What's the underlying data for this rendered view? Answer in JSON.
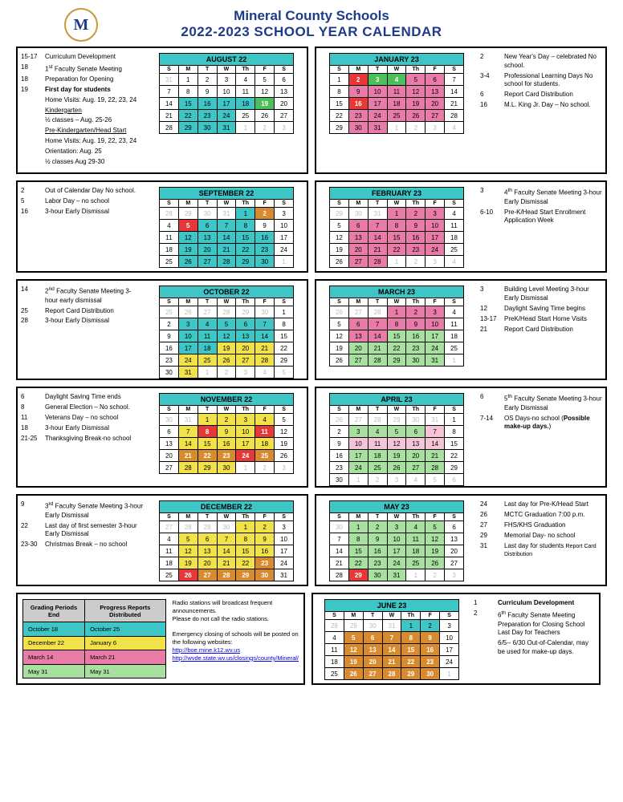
{
  "header": {
    "line1": "Mineral County Schools",
    "line2": "2022-2023 SCHOOL YEAR CALENDAR",
    "logo_letter": "M"
  },
  "colors": {
    "header_teal": "#3ec5c5",
    "teal": "#3ec5c5",
    "red": "#e63838",
    "green": "#4bbf5b",
    "orange": "#d88a2e",
    "yellow": "#f2e24a",
    "pink": "#e87ba8",
    "ltpink": "#f5c4d6",
    "ltgreen": "#a8e0a0",
    "gray_text": "#bbbbbb",
    "navy": "#1e3a8a"
  },
  "dow": [
    "S",
    "M",
    "T",
    "W",
    "Th",
    "F",
    "S"
  ],
  "months": [
    {
      "name": "AUGUST 22",
      "side": "left",
      "notes": [
        {
          "d": "15-17",
          "t": "Curriculum Development"
        },
        {
          "d": "18",
          "t": "1<sup>st</sup> Faculty Senate Meeting"
        },
        {
          "d": "18",
          "t": "Preparation for Opening"
        },
        {
          "d": "19",
          "t": "First day for students",
          "bold": true
        },
        {
          "d": "",
          "t": "Home Visits: Aug. 19, 22, 23, 24"
        },
        {
          "d": "",
          "t": "<u>Kindergarten</u>"
        },
        {
          "d": "",
          "t": "½ classes – Aug. 25-26"
        },
        {
          "d": "",
          "t": "<u>Pre-Kindergarten/Head Start</u>"
        },
        {
          "d": "",
          "t": "Home Visits: Aug. 19, 22, 23, 24"
        },
        {
          "d": "",
          "t": "Orientation: Aug. 25"
        },
        {
          "d": "",
          "t": "½ classes Aug 29-30"
        }
      ],
      "start": 1,
      "days": 31,
      "prev": 31,
      "hl": {
        "15": "teal",
        "16": "teal",
        "17": "teal",
        "18": "teal",
        "19": "green",
        "22": "teal",
        "23": "teal",
        "24": "teal",
        "29": "teal",
        "30": "teal",
        "31": "teal"
      }
    },
    {
      "name": "JANUARY 23",
      "side": "right",
      "notes": [
        {
          "d": "2",
          "t": "New Year's Day – celebrated No school."
        },
        {
          "d": "3-4",
          "t": "Professional Learning Days No school for students."
        },
        {
          "d": "6",
          "t": "Report Card Distribution"
        },
        {
          "d": "16",
          "t": "M.L. King Jr. Day – No school."
        }
      ],
      "start": 0,
      "days": 31,
      "prev": 31,
      "hl": {
        "2": "red",
        "3": "green",
        "4": "green",
        "5": "pink",
        "6": "pink",
        "9": "pink",
        "10": "pink",
        "11": "pink",
        "12": "pink",
        "13": "pink",
        "16": "red",
        "17": "pink",
        "18": "pink",
        "19": "pink",
        "20": "pink",
        "23": "pink",
        "24": "pink",
        "25": "pink",
        "26": "pink",
        "27": "pink",
        "30": "pink",
        "31": "pink"
      }
    },
    {
      "name": "SEPTEMBER 22",
      "side": "left",
      "notes": [
        {
          "d": "2",
          "t": "Out of Calendar Day No school."
        },
        {
          "d": "5",
          "t": "Labor Day – no school"
        },
        {
          "d": "16",
          "t": "3-hour Early Dismissal"
        }
      ],
      "start": 4,
      "days": 30,
      "prev": 31,
      "hl": {
        "1": "teal",
        "2": "orange",
        "5": "red",
        "6": "teal",
        "7": "teal",
        "8": "teal",
        "12": "teal",
        "13": "teal",
        "14": "teal",
        "15": "teal",
        "16": "teal",
        "19": "teal",
        "20": "teal",
        "21": "teal",
        "22": "teal",
        "23": "teal",
        "26": "teal",
        "27": "teal",
        "28": "teal",
        "29": "teal",
        "30": "teal"
      }
    },
    {
      "name": "FEBRUARY 23",
      "side": "right",
      "notes": [
        {
          "d": "3",
          "t": "4<sup>th</sup> Faculty Senate Meeting 3-hour Early Dismissal"
        },
        {
          "d": "6-10",
          "t": "Pre-K/Head Start Enrollment Application Week"
        }
      ],
      "start": 3,
      "days": 28,
      "prev": 31,
      "hl": {
        "1": "pink",
        "2": "pink",
        "3": "pink",
        "6": "pink",
        "7": "pink",
        "8": "pink",
        "9": "pink",
        "10": "pink",
        "13": "pink",
        "14": "pink",
        "15": "pink",
        "16": "pink",
        "17": "pink",
        "20": "pink",
        "21": "pink",
        "22": "pink",
        "23": "pink",
        "24": "pink",
        "27": "pink",
        "28": "pink"
      }
    },
    {
      "name": "OCTOBER 22",
      "side": "left",
      "notes": [
        {
          "d": "14",
          "t": "2<sup>nd</sup> Faculty Senate Meeting 3-hour early dismissal"
        },
        {
          "d": "25",
          "t": "Report Card Distribution"
        },
        {
          "d": "28",
          "t": "3-hour Early Dismissal"
        }
      ],
      "start": 6,
      "days": 31,
      "prev": 30,
      "hl": {
        "3": "teal",
        "4": "teal",
        "5": "teal",
        "6": "teal",
        "7": "teal",
        "10": "teal",
        "11": "teal",
        "12": "teal",
        "13": "teal",
        "14": "teal",
        "17": "teal",
        "18": "teal",
        "19": "yellow",
        "20": "yellow",
        "21": "yellow",
        "24": "yellow",
        "25": "yellow",
        "26": "yellow",
        "27": "yellow",
        "28": "yellow",
        "31": "yellow"
      }
    },
    {
      "name": "MARCH 23",
      "side": "right",
      "notes": [
        {
          "d": "3",
          "t": "Building Level Meeting 3-hour Early Dismissal"
        },
        {
          "d": "12",
          "t": "Daylight Saving Time begins"
        },
        {
          "d": "13-17",
          "t": "PreK/Head Start Home Visits"
        },
        {
          "d": "21",
          "t": "Report Card Distribution"
        }
      ],
      "start": 3,
      "days": 31,
      "prev": 28,
      "hl": {
        "1": "pink",
        "2": "pink",
        "3": "pink",
        "6": "pink",
        "7": "pink",
        "8": "pink",
        "9": "pink",
        "10": "pink",
        "13": "pink",
        "14": "pink",
        "15": "ltgreen",
        "16": "ltgreen",
        "17": "ltgreen",
        "20": "ltgreen",
        "21": "ltgreen",
        "22": "ltgreen",
        "23": "ltgreen",
        "24": "ltgreen",
        "27": "ltgreen",
        "28": "ltgreen",
        "29": "ltgreen",
        "30": "ltgreen",
        "31": "ltgreen"
      }
    },
    {
      "name": "NOVEMBER 22",
      "side": "left",
      "notes": [
        {
          "d": "6",
          "t": "Daylight Saving Time ends"
        },
        {
          "d": "8",
          "t": "General Election – No school."
        },
        {
          "d": "11",
          "t": "Veterans Day – no school"
        },
        {
          "d": "18",
          "t": "3-hour Early Dismissal"
        },
        {
          "d": "21-25",
          "t": "Thanksgiving Break-no school"
        }
      ],
      "start": 2,
      "days": 30,
      "prev": 31,
      "hl": {
        "1": "yellow",
        "2": "yellow",
        "3": "yellow",
        "4": "yellow",
        "7": "yellow",
        "8": "red",
        "9": "yellow",
        "10": "yellow",
        "11": "red",
        "14": "yellow",
        "15": "yellow",
        "16": "yellow",
        "17": "yellow",
        "18": "yellow",
        "21": "orange",
        "22": "orange",
        "23": "orange",
        "24": "red",
        "25": "orange",
        "28": "yellow",
        "29": "yellow",
        "30": "yellow"
      }
    },
    {
      "name": "APRIL 23",
      "side": "right",
      "notes": [
        {
          "d": "6",
          "t": "5<sup>th</sup> Faculty Senate Meeting 3-hour Early Dismissal"
        },
        {
          "d": "7-14",
          "t": "OS Days-no school (<b>Possible make-up days.</b>)"
        }
      ],
      "start": 6,
      "days": 30,
      "prev": 31,
      "hl": {
        "3": "ltgreen",
        "4": "ltgreen",
        "5": "ltgreen",
        "6": "ltgreen",
        "7": "ltpink",
        "10": "ltpink",
        "11": "ltpink",
        "12": "ltpink",
        "13": "ltpink",
        "14": "ltpink",
        "17": "ltgreen",
        "18": "ltgreen",
        "19": "ltgreen",
        "20": "ltgreen",
        "21": "ltgreen",
        "24": "ltgreen",
        "25": "ltgreen",
        "26": "ltgreen",
        "27": "ltgreen",
        "28": "ltgreen"
      }
    },
    {
      "name": "DECEMBER 22",
      "side": "left",
      "notes": [
        {
          "d": "9",
          "t": "3<sup>rd</sup> Faculty Senate Meeting 3-hour Early Dismissal"
        },
        {
          "d": "22",
          "t": "Last day of first semester 3-hour Early Dismissal"
        },
        {
          "d": "23-30",
          "t": "Christmas Break – no school"
        }
      ],
      "start": 4,
      "days": 31,
      "prev": 30,
      "hl": {
        "1": "yellow",
        "2": "yellow",
        "5": "yellow",
        "6": "yellow",
        "7": "yellow",
        "8": "yellow",
        "9": "yellow",
        "12": "yellow",
        "13": "yellow",
        "14": "yellow",
        "15": "yellow",
        "16": "yellow",
        "19": "yellow",
        "20": "yellow",
        "21": "yellow",
        "22": "yellow",
        "23": "orange",
        "26": "red",
        "27": "orange",
        "28": "orange",
        "29": "orange",
        "30": "orange"
      }
    },
    {
      "name": "MAY 23",
      "side": "right",
      "notes": [
        {
          "d": "24",
          "t": "Last day for Pre-K/Head Start"
        },
        {
          "d": "26",
          "t": "MCTC Graduation 7:00 p.m."
        },
        {
          "d": "27",
          "t": "FHS/KHS Graduation"
        },
        {
          "d": "29",
          "t": "Memorial Day- no school"
        },
        {
          "d": "31",
          "t": "Last day for students <span class='small'>Report Card Distribution</span>"
        }
      ],
      "start": 1,
      "days": 31,
      "prev": 30,
      "hl": {
        "1": "ltgreen",
        "2": "ltgreen",
        "3": "ltgreen",
        "4": "ltgreen",
        "5": "ltgreen",
        "8": "ltgreen",
        "9": "ltgreen",
        "10": "ltgreen",
        "11": "ltgreen",
        "12": "ltgreen",
        "15": "ltgreen",
        "16": "ltgreen",
        "17": "ltgreen",
        "18": "ltgreen",
        "19": "ltgreen",
        "22": "ltgreen",
        "23": "ltgreen",
        "24": "ltgreen",
        "25": "ltgreen",
        "26": "ltgreen",
        "29": "red",
        "30": "ltgreen",
        "31": "ltgreen"
      }
    },
    {
      "name": "JUNE 23",
      "side": "right",
      "notes": [
        {
          "d": "1",
          "t": "Curriculum Development",
          "bold": true
        },
        {
          "d": "2",
          "t": "6<sup>th</sup> Faculty Senate Meeting Preparation for Closing School Last Day for Teachers"
        },
        {
          "d": "",
          "t": "6/5-- 6/30 Out-of-Calendar, may be used for make-up days."
        }
      ],
      "start": 4,
      "days": 30,
      "prev": 31,
      "hl": {
        "1": "teal",
        "2": "teal",
        "5": "orange",
        "6": "orange",
        "7": "orange",
        "8": "orange",
        "9": "orange",
        "12": "orange",
        "13": "orange",
        "14": "orange",
        "15": "orange",
        "16": "orange",
        "19": "orange",
        "20": "orange",
        "21": "orange",
        "22": "orange",
        "23": "orange",
        "26": "orange",
        "27": "orange",
        "28": "orange",
        "29": "orange",
        "30": "orange"
      }
    }
  ],
  "grading": {
    "headers": [
      "Grading Periods End",
      "Progress Reports Distributed"
    ],
    "rows": [
      {
        "c": [
          "October 18",
          "October 25"
        ],
        "bg": "teal"
      },
      {
        "c": [
          "December 22",
          "January 6"
        ],
        "bg": "yellow"
      },
      {
        "c": [
          "March 14",
          "March 21"
        ],
        "bg": "pink"
      },
      {
        "c": [
          "May 31",
          "May 31"
        ],
        "bg": "ltgreen"
      }
    ]
  },
  "radio": {
    "p1": "Radio stations will broadcast frequent announcements.",
    "p2": "Please do not call the radio stations.",
    "p3": "Emergency closing of schools will be posted on the following websites:",
    "link1": "http://boe.mine.k12.wv.us",
    "link2": "http://wvde.state.wv.us/closings/county/Mineral/"
  }
}
